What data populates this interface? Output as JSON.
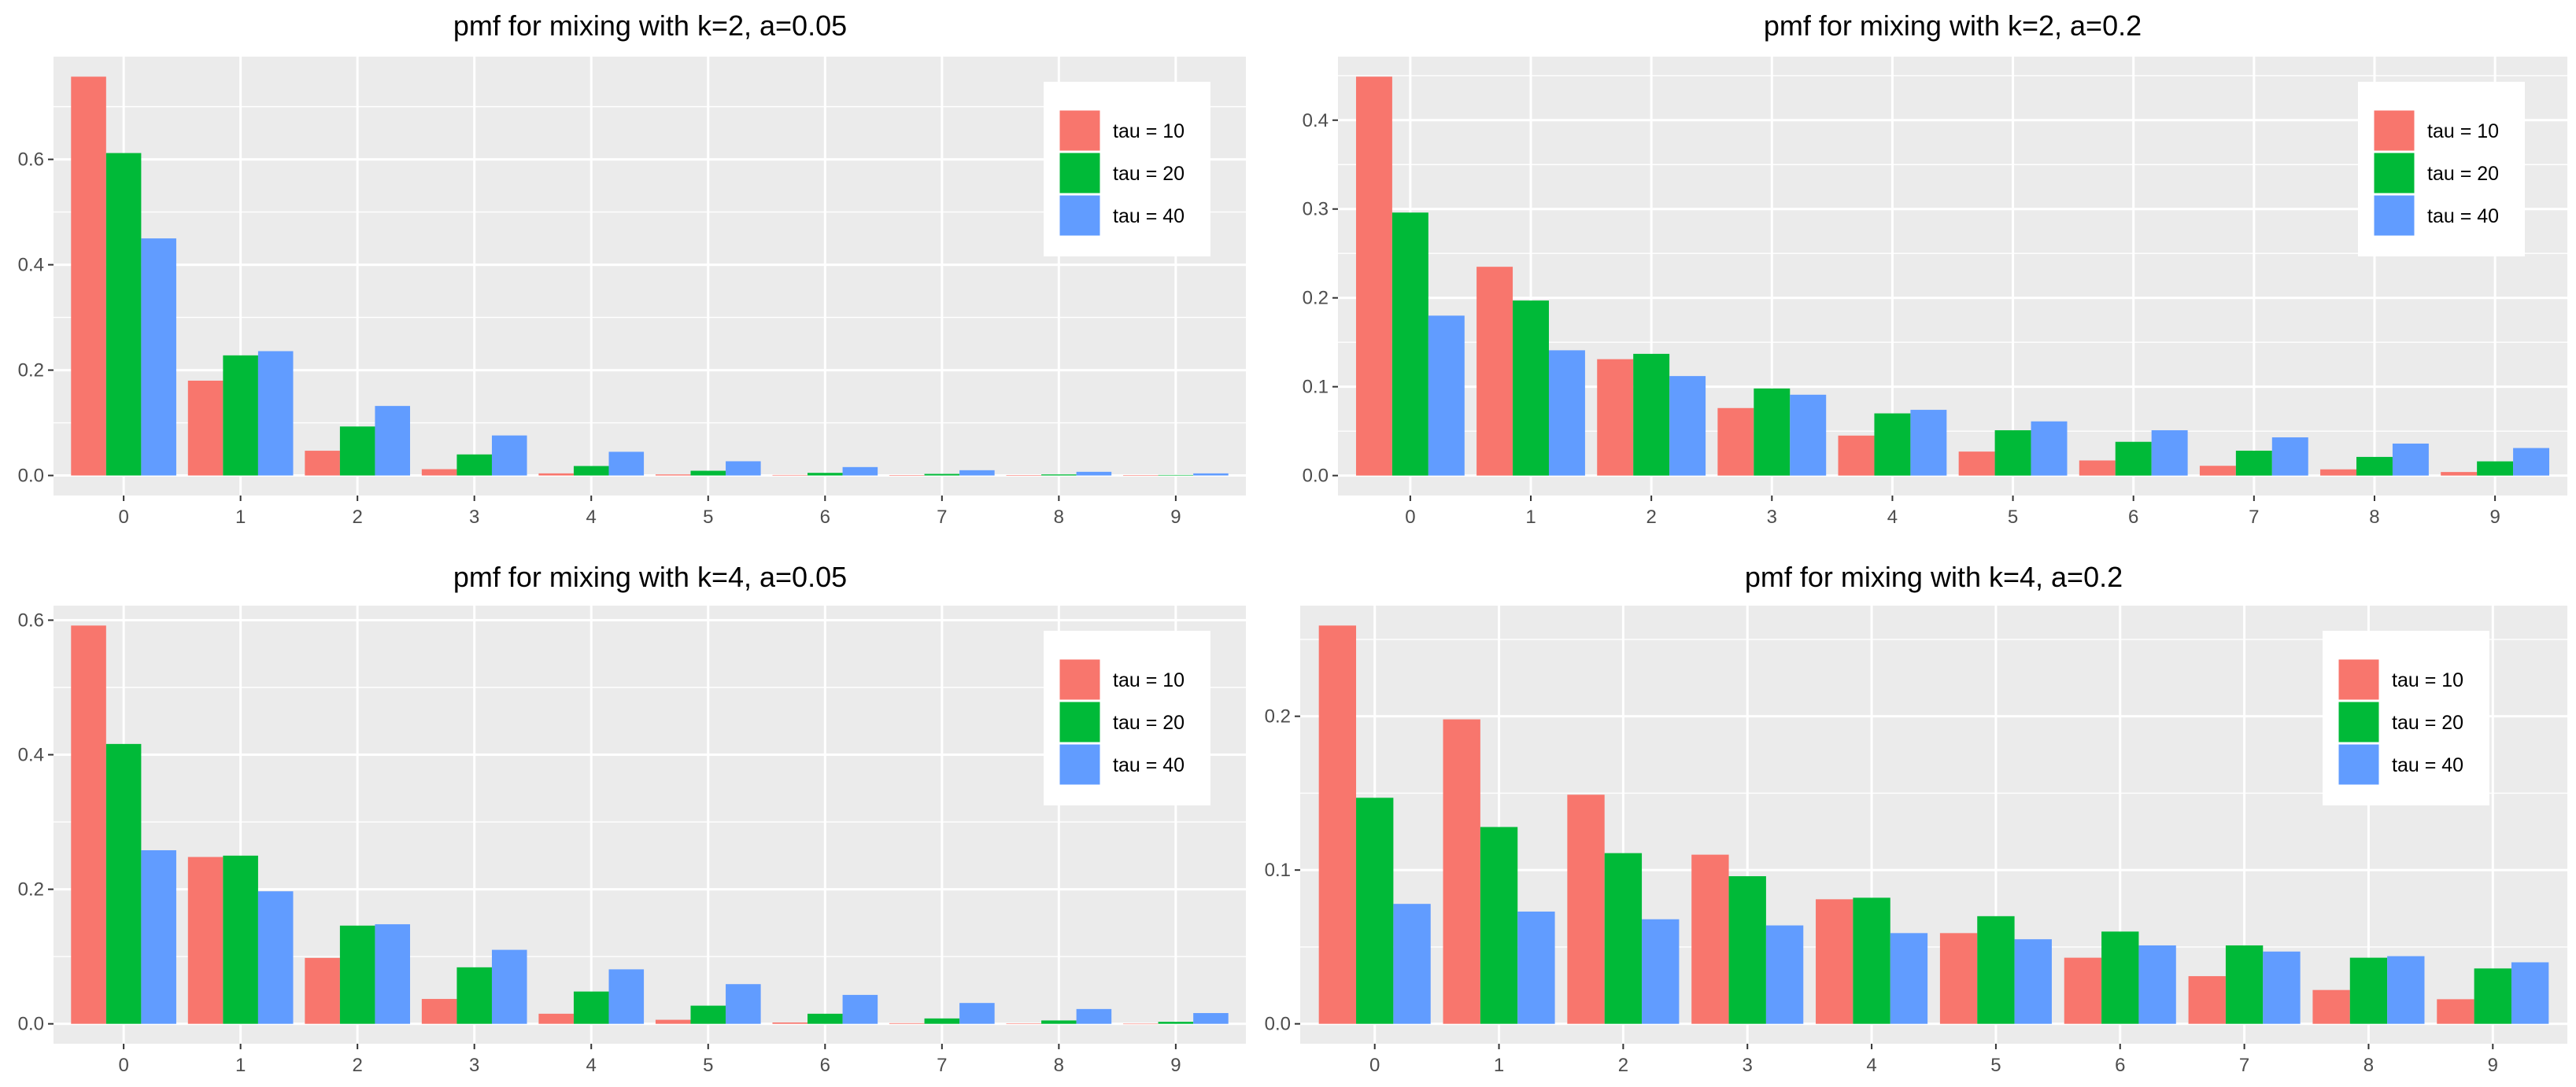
{
  "colors": {
    "tau10": "#F8766D",
    "tau20": "#00BA38",
    "tau40": "#619CFF"
  },
  "chart_data": [
    {
      "type": "bar",
      "title": "pmf for mixing with k=2, a=0.05",
      "xlabel": "",
      "ylabel": "",
      "categories": [
        "0",
        "1",
        "2",
        "3",
        "4",
        "5",
        "6",
        "7",
        "8",
        "9"
      ],
      "ylim": [
        -0.038,
        0.795
      ],
      "yticks": [
        0.0,
        0.2,
        0.4,
        0.6
      ],
      "ytick_labels": [
        "0.0",
        "0.2",
        "0.4",
        "0.6"
      ],
      "legend": "top-right",
      "series": [
        {
          "name": "tau = 10",
          "values": [
            0.757,
            0.18,
            0.047,
            0.012,
            0.004,
            0.002,
            0.001,
            0.0005,
            0.0003,
            0.0002
          ]
        },
        {
          "name": "tau = 20",
          "values": [
            0.612,
            0.228,
            0.093,
            0.04,
            0.018,
            0.009,
            0.005,
            0.003,
            0.002,
            0.001
          ]
        },
        {
          "name": "tau = 40",
          "values": [
            0.45,
            0.236,
            0.132,
            0.076,
            0.045,
            0.027,
            0.016,
            0.01,
            0.007,
            0.004
          ]
        }
      ]
    },
    {
      "type": "bar",
      "title": "pmf for mixing with k=2, a=0.2",
      "xlabel": "",
      "ylabel": "",
      "categories": [
        "0",
        "1",
        "2",
        "3",
        "4",
        "5",
        "6",
        "7",
        "8",
        "9"
      ],
      "ylim": [
        -0.02245,
        0.4715
      ],
      "yticks": [
        0.0,
        0.1,
        0.2,
        0.3,
        0.4
      ],
      "ytick_labels": [
        "0.0",
        "0.1",
        "0.2",
        "0.3",
        "0.4"
      ],
      "legend": "top-right",
      "series": [
        {
          "name": "tau = 10",
          "values": [
            0.449,
            0.235,
            0.131,
            0.076,
            0.045,
            0.027,
            0.017,
            0.011,
            0.007,
            0.004
          ]
        },
        {
          "name": "tau = 20",
          "values": [
            0.296,
            0.197,
            0.137,
            0.098,
            0.07,
            0.051,
            0.038,
            0.028,
            0.021,
            0.016
          ]
        },
        {
          "name": "tau = 40",
          "values": [
            0.18,
            0.141,
            0.112,
            0.091,
            0.074,
            0.061,
            0.051,
            0.043,
            0.036,
            0.031
          ]
        }
      ]
    },
    {
      "type": "bar",
      "title": "pmf for mixing with k=4, a=0.05",
      "xlabel": "",
      "ylabel": "",
      "categories": [
        "0",
        "1",
        "2",
        "3",
        "4",
        "5",
        "6",
        "7",
        "8",
        "9"
      ],
      "ylim": [
        -0.0296,
        0.6216
      ],
      "yticks": [
        0.0,
        0.2,
        0.4,
        0.6
      ],
      "ytick_labels": [
        "0.0",
        "0.2",
        "0.4",
        "0.6"
      ],
      "legend": "top-right",
      "series": [
        {
          "name": "tau = 10",
          "values": [
            0.592,
            0.248,
            0.098,
            0.037,
            0.015,
            0.006,
            0.002,
            0.001,
            0.0005,
            0.0002
          ]
        },
        {
          "name": "tau = 20",
          "values": [
            0.416,
            0.25,
            0.146,
            0.084,
            0.048,
            0.027,
            0.015,
            0.008,
            0.005,
            0.003
          ]
        },
        {
          "name": "tau = 40",
          "values": [
            0.258,
            0.197,
            0.148,
            0.11,
            0.081,
            0.059,
            0.043,
            0.031,
            0.022,
            0.016
          ]
        }
      ]
    },
    {
      "type": "bar",
      "title": "pmf for mixing with k=4, a=0.2",
      "xlabel": "",
      "ylabel": "",
      "categories": [
        "0",
        "1",
        "2",
        "3",
        "4",
        "5",
        "6",
        "7",
        "8",
        "9"
      ],
      "ylim": [
        -0.01295,
        0.27195
      ],
      "yticks": [
        0.0,
        0.1,
        0.2
      ],
      "ytick_labels": [
        "0.0",
        "0.1",
        "0.2"
      ],
      "legend": "top-right",
      "series": [
        {
          "name": "tau = 10",
          "values": [
            0.259,
            0.198,
            0.149,
            0.11,
            0.081,
            0.059,
            0.043,
            0.031,
            0.022,
            0.016
          ]
        },
        {
          "name": "tau = 20",
          "values": [
            0.147,
            0.128,
            0.111,
            0.096,
            0.082,
            0.07,
            0.06,
            0.051,
            0.043,
            0.036
          ]
        },
        {
          "name": "tau = 40",
          "values": [
            0.078,
            0.073,
            0.068,
            0.064,
            0.059,
            0.055,
            0.051,
            0.047,
            0.044,
            0.04
          ]
        }
      ]
    }
  ]
}
